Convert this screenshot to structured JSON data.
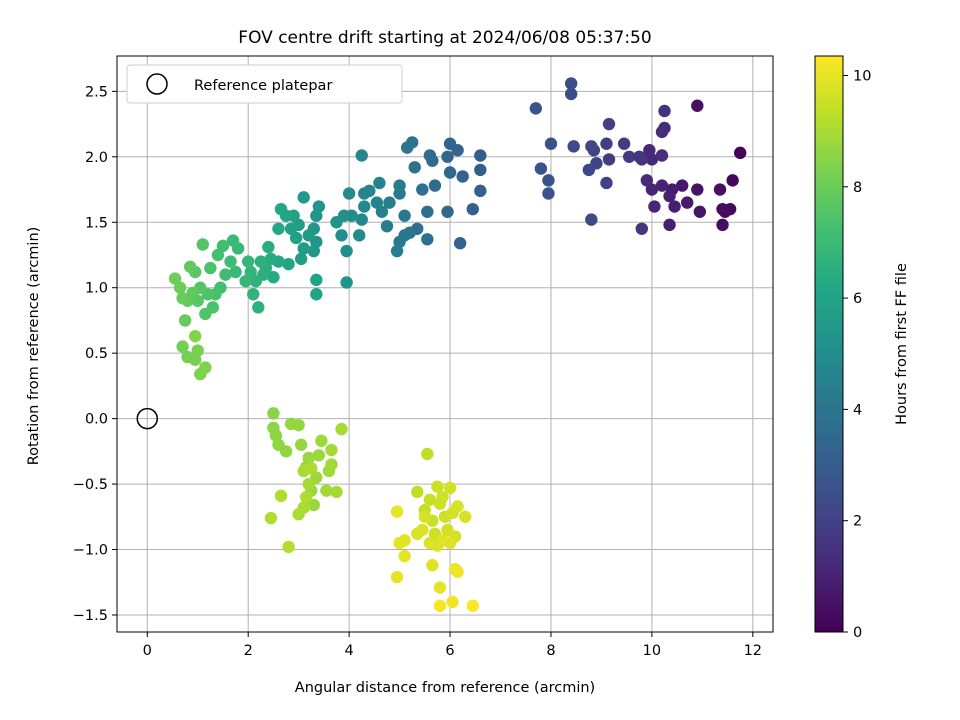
{
  "chart_data": {
    "type": "scatter",
    "title": "FOV centre drift starting at 2024/06/08 05:37:50",
    "xlabel": "Angular distance from reference (arcmin)",
    "ylabel": "Rotation from reference (arcmin)",
    "xlim": [
      -0.6,
      12.4
    ],
    "ylim": [
      -1.63,
      2.77
    ],
    "xticks": [
      0,
      2,
      4,
      6,
      8,
      10,
      12
    ],
    "yticks": [
      -1.5,
      -1.0,
      -0.5,
      0.0,
      0.5,
      1.0,
      1.5,
      2.0,
      2.5
    ],
    "xtick_labels": [
      "0",
      "2",
      "4",
      "6",
      "8",
      "10",
      "12"
    ],
    "ytick_labels": [
      "−1.5",
      "−1.0",
      "−0.5",
      "0.0",
      "0.5",
      "1.0",
      "1.5",
      "2.0",
      "2.5"
    ],
    "grid": true,
    "legend": {
      "position": "top-left",
      "entries": [
        "Reference platepar"
      ]
    },
    "reference_point": {
      "x": 0,
      "y": 0,
      "label": "Reference platepar"
    },
    "colorbar": {
      "label": "Hours from first FF file",
      "colormap": "viridis",
      "range": [
        0,
        10.35
      ],
      "ticks": [
        0,
        2,
        4,
        6,
        8,
        10
      ],
      "tick_labels": [
        "0",
        "2",
        "4",
        "6",
        "8",
        "10"
      ]
    },
    "points": [
      {
        "x": 11.75,
        "y": 2.03,
        "h": 0.1
      },
      {
        "x": 11.6,
        "y": 1.82,
        "h": 0.2
      },
      {
        "x": 11.55,
        "y": 1.6,
        "h": 0.25
      },
      {
        "x": 11.45,
        "y": 1.58,
        "h": 0.3
      },
      {
        "x": 11.4,
        "y": 1.6,
        "h": 0.35
      },
      {
        "x": 11.4,
        "y": 1.48,
        "h": 0.35
      },
      {
        "x": 11.35,
        "y": 1.75,
        "h": 0.4
      },
      {
        "x": 10.9,
        "y": 2.39,
        "h": 0.5
      },
      {
        "x": 10.9,
        "y": 1.75,
        "h": 0.55
      },
      {
        "x": 10.95,
        "y": 1.58,
        "h": 0.6
      },
      {
        "x": 10.6,
        "y": 1.78,
        "h": 0.7
      },
      {
        "x": 10.7,
        "y": 1.65,
        "h": 0.75
      },
      {
        "x": 10.4,
        "y": 1.75,
        "h": 0.8
      },
      {
        "x": 10.45,
        "y": 1.62,
        "h": 0.85
      },
      {
        "x": 10.35,
        "y": 1.48,
        "h": 0.9
      },
      {
        "x": 10.35,
        "y": 1.7,
        "h": 0.95
      },
      {
        "x": 10.2,
        "y": 1.78,
        "h": 1.0
      },
      {
        "x": 10.0,
        "y": 1.75,
        "h": 1.05
      },
      {
        "x": 10.05,
        "y": 1.62,
        "h": 1.1
      },
      {
        "x": 10.0,
        "y": 1.98,
        "h": 1.15
      },
      {
        "x": 9.95,
        "y": 2.05,
        "h": 1.2
      },
      {
        "x": 9.9,
        "y": 1.82,
        "h": 1.25
      },
      {
        "x": 10.25,
        "y": 2.22,
        "h": 1.3
      },
      {
        "x": 10.2,
        "y": 2.19,
        "h": 1.35
      },
      {
        "x": 10.2,
        "y": 2.01,
        "h": 1.4
      },
      {
        "x": 10.25,
        "y": 2.35,
        "h": 1.45
      },
      {
        "x": 9.8,
        "y": 1.45,
        "h": 1.55
      },
      {
        "x": 9.8,
        "y": 1.98,
        "h": 1.6
      },
      {
        "x": 9.75,
        "y": 2.0,
        "h": 1.65
      },
      {
        "x": 9.55,
        "y": 2.0,
        "h": 1.7
      },
      {
        "x": 9.45,
        "y": 2.1,
        "h": 1.8
      },
      {
        "x": 9.15,
        "y": 1.98,
        "h": 1.85
      },
      {
        "x": 9.15,
        "y": 2.25,
        "h": 1.9
      },
      {
        "x": 9.1,
        "y": 2.1,
        "h": 1.95
      },
      {
        "x": 9.1,
        "y": 1.8,
        "h": 2.0
      },
      {
        "x": 8.9,
        "y": 1.95,
        "h": 2.05
      },
      {
        "x": 8.85,
        "y": 2.05,
        "h": 2.1
      },
      {
        "x": 8.8,
        "y": 2.08,
        "h": 2.15
      },
      {
        "x": 8.75,
        "y": 1.9,
        "h": 2.2
      },
      {
        "x": 8.8,
        "y": 1.52,
        "h": 2.25
      },
      {
        "x": 8.45,
        "y": 2.08,
        "h": 2.3
      },
      {
        "x": 8.4,
        "y": 2.48,
        "h": 2.35
      },
      {
        "x": 8.4,
        "y": 2.56,
        "h": 2.4
      },
      {
        "x": 8.0,
        "y": 2.1,
        "h": 2.5
      },
      {
        "x": 7.95,
        "y": 1.82,
        "h": 2.55
      },
      {
        "x": 7.95,
        "y": 1.72,
        "h": 2.6
      },
      {
        "x": 7.8,
        "y": 1.91,
        "h": 2.65
      },
      {
        "x": 7.7,
        "y": 2.37,
        "h": 2.7
      },
      {
        "x": 6.6,
        "y": 2.01,
        "h": 3.0
      },
      {
        "x": 6.6,
        "y": 1.9,
        "h": 3.05
      },
      {
        "x": 6.6,
        "y": 1.74,
        "h": 3.1
      },
      {
        "x": 6.45,
        "y": 1.6,
        "h": 3.15
      },
      {
        "x": 6.25,
        "y": 1.85,
        "h": 3.2
      },
      {
        "x": 6.2,
        "y": 1.34,
        "h": 3.25
      },
      {
        "x": 6.15,
        "y": 2.05,
        "h": 3.3
      },
      {
        "x": 6.0,
        "y": 2.1,
        "h": 3.35
      },
      {
        "x": 5.95,
        "y": 2.0,
        "h": 3.4
      },
      {
        "x": 6.0,
        "y": 1.88,
        "h": 3.45
      },
      {
        "x": 5.95,
        "y": 1.58,
        "h": 3.5
      },
      {
        "x": 5.7,
        "y": 1.78,
        "h": 3.55
      },
      {
        "x": 5.65,
        "y": 1.97,
        "h": 3.6
      },
      {
        "x": 5.6,
        "y": 2.01,
        "h": 3.65
      },
      {
        "x": 5.55,
        "y": 1.58,
        "h": 3.7
      },
      {
        "x": 5.55,
        "y": 1.37,
        "h": 3.75
      },
      {
        "x": 5.45,
        "y": 1.75,
        "h": 3.8
      },
      {
        "x": 5.35,
        "y": 1.45,
        "h": 3.85
      },
      {
        "x": 5.3,
        "y": 1.92,
        "h": 3.9
      },
      {
        "x": 5.25,
        "y": 2.11,
        "h": 3.95
      },
      {
        "x": 5.2,
        "y": 1.42,
        "h": 4.0
      },
      {
        "x": 5.15,
        "y": 2.07,
        "h": 4.05
      },
      {
        "x": 5.1,
        "y": 1.4,
        "h": 4.1
      },
      {
        "x": 5.1,
        "y": 1.55,
        "h": 4.15
      },
      {
        "x": 5.0,
        "y": 1.35,
        "h": 4.2
      },
      {
        "x": 5.0,
        "y": 1.72,
        "h": 4.25
      },
      {
        "x": 5.0,
        "y": 1.78,
        "h": 4.3
      },
      {
        "x": 4.95,
        "y": 1.28,
        "h": 4.35
      },
      {
        "x": 4.8,
        "y": 1.65,
        "h": 4.4
      },
      {
        "x": 4.75,
        "y": 1.47,
        "h": 4.45
      },
      {
        "x": 4.65,
        "y": 1.58,
        "h": 4.5
      },
      {
        "x": 4.55,
        "y": 1.65,
        "h": 4.55
      },
      {
        "x": 4.6,
        "y": 1.8,
        "h": 4.6
      },
      {
        "x": 4.4,
        "y": 1.74,
        "h": 4.65
      },
      {
        "x": 4.3,
        "y": 1.72,
        "h": 4.7
      },
      {
        "x": 4.25,
        "y": 2.01,
        "h": 4.75
      },
      {
        "x": 4.3,
        "y": 1.62,
        "h": 4.8
      },
      {
        "x": 4.25,
        "y": 1.52,
        "h": 4.85
      },
      {
        "x": 4.2,
        "y": 1.4,
        "h": 4.9
      },
      {
        "x": 4.05,
        "y": 1.55,
        "h": 4.95
      },
      {
        "x": 4.0,
        "y": 1.72,
        "h": 5.0
      },
      {
        "x": 3.95,
        "y": 1.28,
        "h": 5.05
      },
      {
        "x": 3.9,
        "y": 1.55,
        "h": 5.1
      },
      {
        "x": 3.85,
        "y": 1.4,
        "h": 5.15
      },
      {
        "x": 3.95,
        "y": 1.04,
        "h": 5.2
      },
      {
        "x": 3.75,
        "y": 1.5,
        "h": 5.25
      },
      {
        "x": 3.4,
        "y": 1.62,
        "h": 5.3
      },
      {
        "x": 3.35,
        "y": 1.55,
        "h": 5.35
      },
      {
        "x": 3.3,
        "y": 1.45,
        "h": 5.4
      },
      {
        "x": 3.35,
        "y": 1.35,
        "h": 5.45
      },
      {
        "x": 3.3,
        "y": 1.28,
        "h": 5.5
      },
      {
        "x": 3.2,
        "y": 1.4,
        "h": 5.55
      },
      {
        "x": 3.1,
        "y": 1.69,
        "h": 5.6
      },
      {
        "x": 3.1,
        "y": 1.3,
        "h": 5.65
      },
      {
        "x": 3.05,
        "y": 1.22,
        "h": 5.7
      },
      {
        "x": 3.0,
        "y": 1.48,
        "h": 5.75
      },
      {
        "x": 2.95,
        "y": 1.38,
        "h": 5.8
      },
      {
        "x": 2.9,
        "y": 1.55,
        "h": 5.85
      },
      {
        "x": 2.85,
        "y": 1.45,
        "h": 5.9
      },
      {
        "x": 3.35,
        "y": 1.06,
        "h": 5.95
      },
      {
        "x": 3.35,
        "y": 0.95,
        "h": 6.0
      },
      {
        "x": 2.8,
        "y": 1.18,
        "h": 6.05
      },
      {
        "x": 2.75,
        "y": 1.55,
        "h": 6.1
      },
      {
        "x": 2.65,
        "y": 1.6,
        "h": 6.15
      },
      {
        "x": 2.6,
        "y": 1.45,
        "h": 6.2
      },
      {
        "x": 2.6,
        "y": 1.2,
        "h": 6.25
      },
      {
        "x": 2.5,
        "y": 1.08,
        "h": 6.3
      },
      {
        "x": 2.45,
        "y": 1.22,
        "h": 6.35
      },
      {
        "x": 2.4,
        "y": 1.31,
        "h": 6.4
      },
      {
        "x": 2.35,
        "y": 1.15,
        "h": 6.45
      },
      {
        "x": 2.3,
        "y": 1.1,
        "h": 6.5
      },
      {
        "x": 2.25,
        "y": 1.2,
        "h": 6.55
      },
      {
        "x": 2.2,
        "y": 0.85,
        "h": 6.6
      },
      {
        "x": 2.15,
        "y": 1.05,
        "h": 6.65
      },
      {
        "x": 2.1,
        "y": 0.95,
        "h": 6.7
      },
      {
        "x": 2.05,
        "y": 1.12,
        "h": 6.75
      },
      {
        "x": 2.0,
        "y": 1.2,
        "h": 6.8
      },
      {
        "x": 1.95,
        "y": 1.05,
        "h": 6.85
      },
      {
        "x": 1.8,
        "y": 1.3,
        "h": 6.9
      },
      {
        "x": 1.75,
        "y": 1.12,
        "h": 6.95
      },
      {
        "x": 1.7,
        "y": 1.36,
        "h": 7.0
      },
      {
        "x": 1.65,
        "y": 1.2,
        "h": 7.05
      },
      {
        "x": 1.55,
        "y": 1.1,
        "h": 7.1
      },
      {
        "x": 1.5,
        "y": 1.32,
        "h": 7.15
      },
      {
        "x": 1.45,
        "y": 1.0,
        "h": 7.2
      },
      {
        "x": 1.4,
        "y": 1.25,
        "h": 7.25
      },
      {
        "x": 1.35,
        "y": 0.95,
        "h": 7.3
      },
      {
        "x": 1.3,
        "y": 0.85,
        "h": 7.35
      },
      {
        "x": 1.25,
        "y": 1.15,
        "h": 7.4
      },
      {
        "x": 1.2,
        "y": 0.95,
        "h": 7.45
      },
      {
        "x": 1.15,
        "y": 0.8,
        "h": 7.5
      },
      {
        "x": 1.1,
        "y": 1.33,
        "h": 7.55
      },
      {
        "x": 1.05,
        "y": 1.0,
        "h": 7.6
      },
      {
        "x": 1.0,
        "y": 0.9,
        "h": 7.65
      },
      {
        "x": 0.95,
        "y": 1.12,
        "h": 7.7
      },
      {
        "x": 0.9,
        "y": 0.96,
        "h": 7.75
      },
      {
        "x": 0.85,
        "y": 1.16,
        "h": 7.8
      },
      {
        "x": 0.8,
        "y": 0.9,
        "h": 7.85
      },
      {
        "x": 0.75,
        "y": 0.75,
        "h": 7.9
      },
      {
        "x": 0.7,
        "y": 0.92,
        "h": 7.95
      },
      {
        "x": 0.65,
        "y": 1.0,
        "h": 8.0
      },
      {
        "x": 0.55,
        "y": 1.07,
        "h": 8.05
      },
      {
        "x": 0.7,
        "y": 0.55,
        "h": 8.1
      },
      {
        "x": 0.8,
        "y": 0.47,
        "h": 8.15
      },
      {
        "x": 0.95,
        "y": 0.45,
        "h": 8.2
      },
      {
        "x": 1.0,
        "y": 0.52,
        "h": 8.25
      },
      {
        "x": 1.05,
        "y": 0.34,
        "h": 8.3
      },
      {
        "x": 1.15,
        "y": 0.39,
        "h": 8.35
      },
      {
        "x": 0.95,
        "y": 0.63,
        "h": 8.4
      },
      {
        "x": 2.5,
        "y": 0.04,
        "h": 8.5
      },
      {
        "x": 2.5,
        "y": -0.07,
        "h": 8.55
      },
      {
        "x": 2.55,
        "y": -0.13,
        "h": 8.6
      },
      {
        "x": 2.6,
        "y": -0.2,
        "h": 8.62
      },
      {
        "x": 2.75,
        "y": -0.25,
        "h": 8.64
      },
      {
        "x": 2.85,
        "y": -0.04,
        "h": 8.66
      },
      {
        "x": 3.0,
        "y": -0.05,
        "h": 8.68
      },
      {
        "x": 3.05,
        "y": -0.2,
        "h": 8.7
      },
      {
        "x": 3.15,
        "y": -0.37,
        "h": 8.72
      },
      {
        "x": 3.2,
        "y": -0.3,
        "h": 8.74
      },
      {
        "x": 3.25,
        "y": -0.55,
        "h": 8.76
      },
      {
        "x": 3.3,
        "y": -0.66,
        "h": 8.78
      },
      {
        "x": 3.35,
        "y": -0.45,
        "h": 8.8
      },
      {
        "x": 3.4,
        "y": -0.28,
        "h": 8.82
      },
      {
        "x": 3.45,
        "y": -0.17,
        "h": 8.84
      },
      {
        "x": 3.55,
        "y": -0.55,
        "h": 8.86
      },
      {
        "x": 3.6,
        "y": -0.4,
        "h": 8.88
      },
      {
        "x": 3.65,
        "y": -0.35,
        "h": 8.9
      },
      {
        "x": 3.65,
        "y": -0.24,
        "h": 8.92
      },
      {
        "x": 3.75,
        "y": -0.56,
        "h": 8.94
      },
      {
        "x": 3.85,
        "y": -0.08,
        "h": 8.96
      },
      {
        "x": 3.2,
        "y": -0.5,
        "h": 8.98
      },
      {
        "x": 3.1,
        "y": -0.4,
        "h": 9.0
      },
      {
        "x": 3.0,
        "y": -0.73,
        "h": 9.02
      },
      {
        "x": 3.1,
        "y": -0.68,
        "h": 9.04
      },
      {
        "x": 3.25,
        "y": -0.38,
        "h": 9.06
      },
      {
        "x": 3.15,
        "y": -0.6,
        "h": 9.08
      },
      {
        "x": 2.65,
        "y": -0.59,
        "h": 9.1
      },
      {
        "x": 2.45,
        "y": -0.76,
        "h": 9.12
      },
      {
        "x": 2.8,
        "y": -0.98,
        "h": 9.14
      },
      {
        "x": 5.55,
        "y": -0.27,
        "h": 9.3
      },
      {
        "x": 5.35,
        "y": -0.56,
        "h": 9.35
      },
      {
        "x": 5.5,
        "y": -0.7,
        "h": 9.4
      },
      {
        "x": 5.6,
        "y": -0.62,
        "h": 9.45
      },
      {
        "x": 5.65,
        "y": -0.78,
        "h": 9.5
      },
      {
        "x": 5.7,
        "y": -0.88,
        "h": 9.52
      },
      {
        "x": 5.75,
        "y": -0.52,
        "h": 9.54
      },
      {
        "x": 5.8,
        "y": -0.65,
        "h": 9.56
      },
      {
        "x": 5.85,
        "y": -0.6,
        "h": 9.58
      },
      {
        "x": 5.9,
        "y": -0.75,
        "h": 9.6
      },
      {
        "x": 5.95,
        "y": -0.85,
        "h": 9.62
      },
      {
        "x": 6.0,
        "y": -0.53,
        "h": 9.64
      },
      {
        "x": 6.05,
        "y": -0.72,
        "h": 9.66
      },
      {
        "x": 6.1,
        "y": -0.9,
        "h": 9.68
      },
      {
        "x": 6.15,
        "y": -0.67,
        "h": 9.7
      },
      {
        "x": 6.3,
        "y": -0.75,
        "h": 9.72
      },
      {
        "x": 5.5,
        "y": -0.75,
        "h": 9.74
      },
      {
        "x": 5.45,
        "y": -0.85,
        "h": 9.76
      },
      {
        "x": 5.35,
        "y": -0.88,
        "h": 9.78
      },
      {
        "x": 5.6,
        "y": -0.95,
        "h": 9.8
      },
      {
        "x": 5.75,
        "y": -0.97,
        "h": 9.82
      },
      {
        "x": 5.85,
        "y": -0.93,
        "h": 9.84
      },
      {
        "x": 6.0,
        "y": -0.95,
        "h": 9.86
      },
      {
        "x": 5.65,
        "y": -1.12,
        "h": 9.88
      },
      {
        "x": 5.1,
        "y": -0.93,
        "h": 9.9
      },
      {
        "x": 5.0,
        "y": -0.95,
        "h": 9.92
      },
      {
        "x": 5.1,
        "y": -1.05,
        "h": 9.94
      },
      {
        "x": 4.95,
        "y": -0.71,
        "h": 9.96
      },
      {
        "x": 4.95,
        "y": -1.21,
        "h": 9.98
      },
      {
        "x": 5.8,
        "y": -1.29,
        "h": 10.0
      },
      {
        "x": 6.1,
        "y": -1.15,
        "h": 10.05
      },
      {
        "x": 6.15,
        "y": -1.17,
        "h": 10.1
      },
      {
        "x": 6.05,
        "y": -1.4,
        "h": 10.15
      },
      {
        "x": 5.8,
        "y": -1.43,
        "h": 10.2
      },
      {
        "x": 6.45,
        "y": -1.43,
        "h": 10.3
      }
    ]
  }
}
